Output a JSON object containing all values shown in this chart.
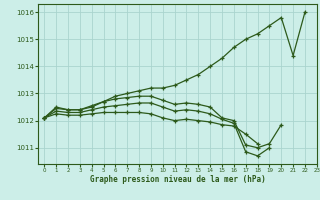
{
  "title": "Graphe pression niveau de la mer (hPa)",
  "bg_color": "#cceee8",
  "grid_color": "#aad4ce",
  "line_color": "#2d5a1b",
  "xlim": [
    -0.5,
    23
  ],
  "ylim": [
    1010.4,
    1016.3
  ],
  "yticks": [
    1011,
    1012,
    1013,
    1014,
    1015,
    1016
  ],
  "xticks": [
    0,
    1,
    2,
    3,
    4,
    5,
    6,
    7,
    8,
    9,
    10,
    11,
    12,
    13,
    14,
    15,
    16,
    17,
    18,
    19,
    20,
    21,
    22,
    23
  ],
  "lines": [
    {
      "x": [
        0,
        1,
        2,
        3,
        4,
        5,
        6,
        7,
        8,
        9,
        10,
        11,
        12,
        13,
        14,
        15,
        16,
        17,
        18,
        19,
        20,
        21,
        22
      ],
      "y": [
        1012.1,
        1012.5,
        1012.4,
        1012.4,
        1012.5,
        1012.7,
        1012.9,
        1013.0,
        1013.1,
        1013.2,
        1013.2,
        1013.3,
        1013.5,
        1013.7,
        1014.0,
        1014.3,
        1014.7,
        1015.0,
        1015.2,
        1015.5,
        1015.8,
        1014.4,
        1016.0
      ]
    },
    {
      "x": [
        0,
        1,
        2,
        3,
        4,
        5,
        6,
        7,
        8,
        9,
        10,
        11,
        12,
        13,
        14,
        15,
        16,
        17,
        18,
        19,
        20
      ],
      "y": [
        1012.1,
        1012.45,
        1012.4,
        1012.4,
        1012.55,
        1012.7,
        1012.8,
        1012.85,
        1012.9,
        1012.9,
        1012.75,
        1012.6,
        1012.65,
        1012.6,
        1012.5,
        1012.1,
        1012.0,
        1011.1,
        1011.0,
        1011.15,
        1011.85
      ]
    },
    {
      "x": [
        0,
        1,
        2,
        3,
        4,
        5,
        6,
        7,
        8,
        9,
        10,
        11,
        12,
        13,
        14,
        15,
        16,
        17,
        18,
        19
      ],
      "y": [
        1012.1,
        1012.35,
        1012.3,
        1012.3,
        1012.4,
        1012.5,
        1012.55,
        1012.6,
        1012.65,
        1012.65,
        1012.5,
        1012.35,
        1012.4,
        1012.35,
        1012.25,
        1012.05,
        1011.9,
        1010.85,
        1010.7,
        1011.0
      ]
    },
    {
      "x": [
        0,
        1,
        2,
        3,
        4,
        5,
        6,
        7,
        8,
        9,
        10,
        11,
        12,
        13,
        14,
        15,
        16,
        17,
        18
      ],
      "y": [
        1012.1,
        1012.25,
        1012.2,
        1012.2,
        1012.25,
        1012.3,
        1012.3,
        1012.3,
        1012.3,
        1012.25,
        1012.1,
        1012.0,
        1012.05,
        1012.0,
        1011.95,
        1011.85,
        1011.8,
        1011.5,
        1011.15
      ]
    }
  ]
}
